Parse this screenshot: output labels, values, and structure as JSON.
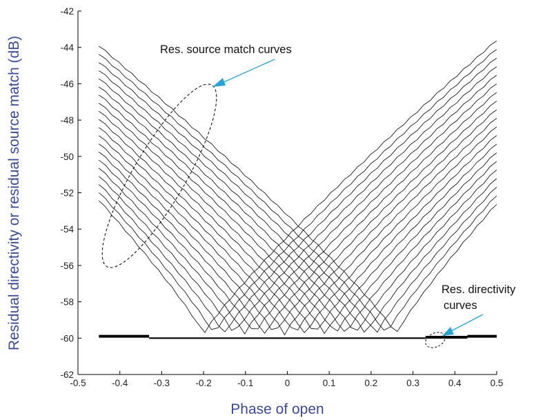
{
  "chart_data": {
    "type": "line",
    "title": "",
    "xlabel": "Phase of open",
    "ylabel": "Residual directivity or residual source match (dB)",
    "xlim": [
      -0.5,
      0.5
    ],
    "ylim": [
      -62,
      -42
    ],
    "xticks": [
      -0.5,
      -0.4,
      -0.3,
      -0.2,
      -0.1,
      0,
      0.1,
      0.2,
      0.3,
      0.4,
      0.5
    ],
    "xtick_labels": [
      "-0.5",
      "-0.4",
      "-0.3",
      "-0.2",
      "-0.1",
      "0",
      "0.1",
      "0.2",
      "0.3",
      "0.4",
      "0.5"
    ],
    "yticks": [
      -62,
      -60,
      -58,
      -56,
      -54,
      -52,
      -50,
      -48,
      -46,
      -44,
      -42
    ],
    "ytick_labels": [
      "-62",
      "-60",
      "-58",
      "-56",
      "-54",
      "-52",
      "-50",
      "-48",
      "-46",
      "-44",
      "-42"
    ],
    "x_range_of_curves": [
      -0.45,
      0.5
    ],
    "grid": false,
    "source_match_curves": {
      "count": 20,
      "left_start_db_range": [
        -52.4,
        -43.9
      ],
      "right_end_db_range": [
        -52.6,
        -43.6
      ],
      "minimum_db": -59.8,
      "minimum_phase_range": [
        -0.2,
        0.26
      ],
      "color": "#1a1a1a"
    },
    "directivity_curve": {
      "level_db": -60,
      "segments": [
        {
          "x": [
            -0.45,
            -0.33
          ],
          "y": -59.9
        },
        {
          "x": [
            -0.33,
            0.33
          ],
          "y": -60.0
        },
        {
          "x": [
            0.33,
            0.43
          ],
          "y": -59.95
        },
        {
          "x": [
            0.43,
            0.5
          ],
          "y": -59.9
        }
      ],
      "color": "#000000"
    },
    "annotations": [
      {
        "text": "Res. source match curves",
        "arrow_color": "#29a3d8"
      },
      {
        "text": "Res. directivity",
        "text2": "curves",
        "arrow_color": "#29a3d8"
      }
    ]
  }
}
